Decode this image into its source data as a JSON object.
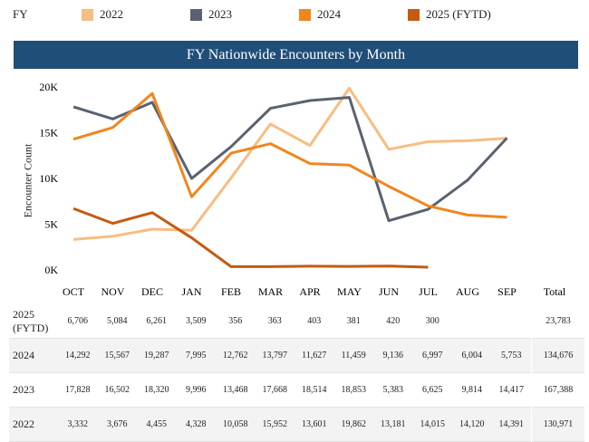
{
  "legend": {
    "title": "FY",
    "items": [
      {
        "label": "2022",
        "color": "#f8bd82"
      },
      {
        "label": "2023",
        "color": "#5a6270"
      },
      {
        "label": "2024",
        "color": "#f0861e"
      },
      {
        "label": "2025 (FYTD)",
        "color": "#c55a11"
      }
    ]
  },
  "chart_data": {
    "type": "line",
    "title": "FY Nationwide Encounters by Month",
    "ylabel": "Encounter Count",
    "xlabel": "",
    "ylim": [
      0,
      20000
    ],
    "yticks": [
      "0K",
      "5K",
      "10K",
      "15K",
      "20K"
    ],
    "categories": [
      "OCT",
      "NOV",
      "DEC",
      "JAN",
      "FEB",
      "MAR",
      "APR",
      "MAY",
      "JUN",
      "JUL",
      "AUG",
      "SEP"
    ],
    "total_label": "Total",
    "series": [
      {
        "name": "2025 (FYTD)",
        "row_label": "2025 (FYTD)",
        "color": "#c55a11",
        "values": [
          6706,
          5084,
          6261,
          3509,
          356,
          363,
          403,
          381,
          420,
          300,
          null,
          null
        ],
        "display": [
          "6,706",
          "5,084",
          "6,261",
          "3,509",
          "356",
          "363",
          "403",
          "381",
          "420",
          "300",
          "",
          ""
        ],
        "total": "23,783"
      },
      {
        "name": "2024",
        "row_label": "2024",
        "color": "#f0861e",
        "values": [
          14292,
          15567,
          19287,
          7995,
          12762,
          13797,
          11627,
          11459,
          9136,
          6997,
          6004,
          5753
        ],
        "display": [
          "14,292",
          "15,567",
          "19,287",
          "7,995",
          "12,762",
          "13,797",
          "11,627",
          "11,459",
          "9,136",
          "6,997",
          "6,004",
          "5,753"
        ],
        "total": "134,676"
      },
      {
        "name": "2023",
        "row_label": "2023",
        "color": "#5a6270",
        "values": [
          17828,
          16502,
          18320,
          9996,
          13468,
          17668,
          18514,
          18853,
          5383,
          6625,
          9814,
          14417
        ],
        "display": [
          "17,828",
          "16,502",
          "18,320",
          "9,996",
          "13,468",
          "17,668",
          "18,514",
          "18,853",
          "5,383",
          "6,625",
          "9,814",
          "14,417"
        ],
        "total": "167,388"
      },
      {
        "name": "2022",
        "row_label": "2022",
        "color": "#f8bd82",
        "values": [
          3332,
          3676,
          4455,
          4328,
          10058,
          15952,
          13601,
          19862,
          13181,
          14015,
          14120,
          14391
        ],
        "display": [
          "3,332",
          "3,676",
          "4,455",
          "4,328",
          "10,058",
          "15,952",
          "13,601",
          "19,862",
          "13,181",
          "14,015",
          "14,120",
          "14,391"
        ],
        "total": "130,971"
      }
    ]
  }
}
